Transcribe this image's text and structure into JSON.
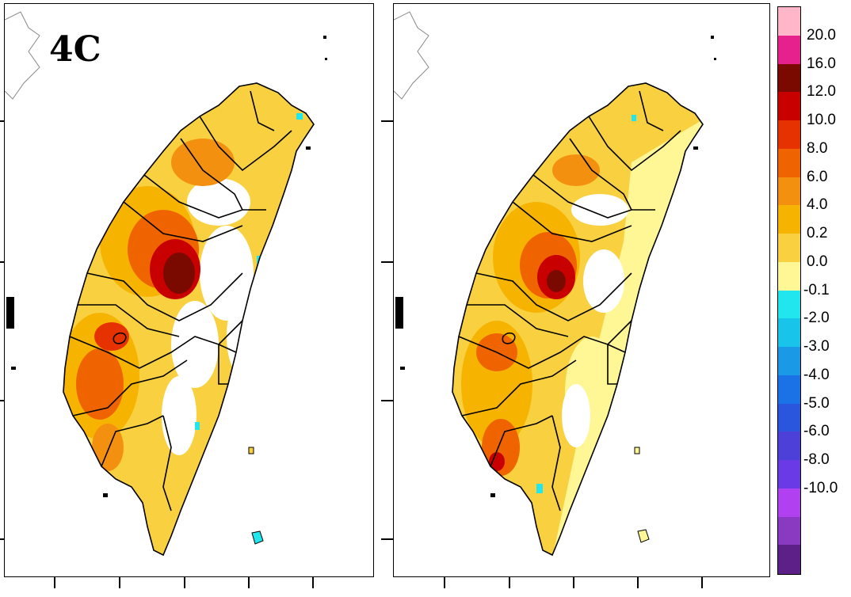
{
  "panels": [
    {
      "id": "left",
      "label": "4C"
    },
    {
      "id": "right",
      "label": ""
    }
  ],
  "colorbar": {
    "swatches": [
      "#ffb6c8",
      "#e6208c",
      "#7a0a00",
      "#c80000",
      "#e63200",
      "#f06400",
      "#f49010",
      "#f6b400",
      "#f8d040",
      "#fff696",
      "#22e6ee",
      "#18c4ea",
      "#1a9ae6",
      "#1a72e6",
      "#2a56de",
      "#4c40d8",
      "#6a3ae6",
      "#b040f0",
      "#8a3ac0",
      "#5c2088"
    ],
    "labels": [
      "20.0",
      "16.0",
      "12.0",
      "10.0",
      "8.0",
      "6.0",
      "4.0",
      "0.2",
      "0.0",
      "-0.1",
      "-2.0",
      "-3.0",
      "-4.0",
      "-5.0",
      "-6.0",
      "-8.0",
      "-10.0"
    ]
  }
}
